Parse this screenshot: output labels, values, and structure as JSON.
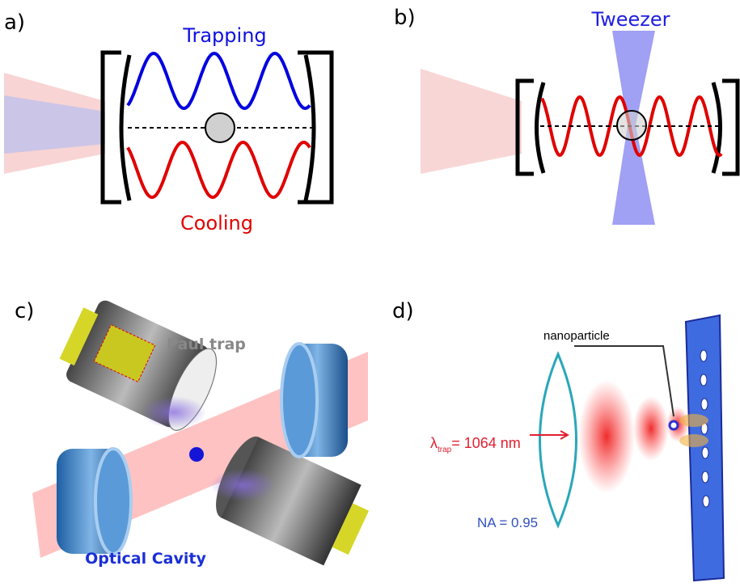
{
  "panels": {
    "a": {
      "label": "a)",
      "trapping": "Trapping",
      "cooling": "Cooling"
    },
    "b": {
      "label": "b)",
      "tweezer": "Tweezer"
    },
    "c": {
      "label": "c)",
      "paul_trap": "Paul trap",
      "optical_cavity": "Optical Cavity"
    },
    "d": {
      "label": "d)",
      "nanoparticle": "nanoparticle",
      "wavelength": {
        "symbol": "λ",
        "subscript": "trap",
        "text": "= 1064 nm"
      },
      "na": "NA = 0.95"
    }
  }
}
